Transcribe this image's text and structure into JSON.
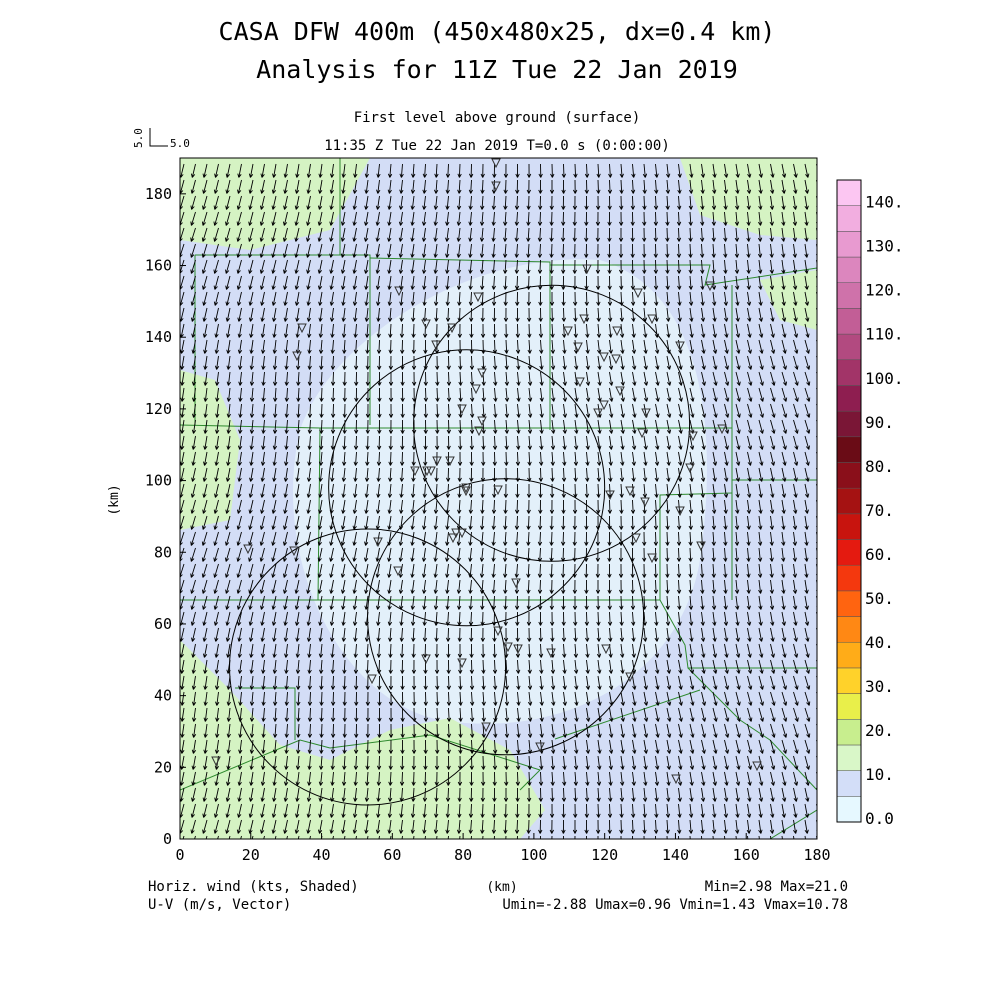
{
  "titles": {
    "line1": "CASA DFW 400m (450x480x25, dx=0.4 km)",
    "line2": "Analysis for 11Z Tue 22 Jan 2019",
    "level": "First level above ground (surface)",
    "time": "11:35 Z Tue 22 Jan 2019   T=0.0 s (0:00:00)"
  },
  "scale_vector": {
    "left_label": "5.0",
    "right_label": "5.0"
  },
  "axes": {
    "x": {
      "label": "(km)",
      "range": [
        0,
        180
      ],
      "ticks": [
        "0",
        "20",
        "40",
        "60",
        "80",
        "100",
        "120",
        "140",
        "160",
        "180"
      ]
    },
    "y": {
      "label": "(km)",
      "range": [
        0,
        190
      ],
      "ticks": [
        "0",
        "20",
        "40",
        "60",
        "80",
        "100",
        "120",
        "140",
        "160",
        "180"
      ]
    }
  },
  "colorbar": {
    "labels": [
      "0.0",
      "10.",
      "20.",
      "30.",
      "40.",
      "50.",
      "60.",
      "70.",
      "80.",
      "90.",
      "100.",
      "110.",
      "120.",
      "130.",
      "140."
    ],
    "colors": [
      "#e6f8ff",
      "#d3def8",
      "#d9f7c8",
      "#c8ee8e",
      "#e9ef4a",
      "#ffd22a",
      "#ffac18",
      "#ff8814",
      "#ff6410",
      "#f4380e",
      "#e41a10",
      "#c8140e",
      "#a51212",
      "#8a0f1a",
      "#6a0c16",
      "#7a1636",
      "#8e1e50",
      "#a23468",
      "#b24a80",
      "#c25e96",
      "#cf72aa",
      "#dc86be",
      "#e89ad0",
      "#f2aee0",
      "#fcc6f2"
    ]
  },
  "footer": {
    "left1": "Horiz. wind (kts, Shaded)",
    "left2": "U-V (m/s, Vector)",
    "center": "(km)",
    "right1": "Min=2.98 Max=21.0",
    "right2": "Umin=-2.88 Umax=0.96 Vmin=1.43 Vmax=10.78"
  },
  "field": {
    "background": "#d3ddf6",
    "light_core": "#e4f2fb",
    "green": "#d5f3c3",
    "boundary_color": "#2e8a2e",
    "vector_color": "#000000",
    "marker_color": "#333333"
  },
  "radar_circles_km": [
    {
      "x": 105,
      "y": 116,
      "r": 39
    },
    {
      "x": 81,
      "y": 98,
      "r": 39
    },
    {
      "x": 92,
      "y": 62,
      "r": 39
    },
    {
      "x": 53,
      "y": 48,
      "r": 39
    }
  ]
}
